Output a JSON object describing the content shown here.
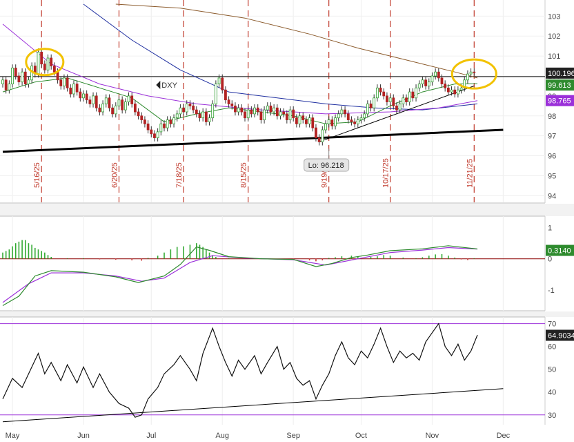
{
  "chart_data": [
    {
      "type": "candlestick",
      "symbol": "DXY",
      "x_labels": [
        "May",
        "Jun",
        "Jul",
        "Aug",
        "Sep",
        "Oct",
        "Nov",
        "Dec"
      ],
      "ylim": [
        93.7,
        103.6
      ],
      "y_ticks": [
        94,
        95,
        96,
        97,
        98,
        99,
        100,
        101,
        102,
        103
      ],
      "event_dates": [
        "5/16/25",
        "6/20/25",
        "7/18/25",
        "8/15/25",
        "9/19/25",
        "10/17/25",
        "11/21/25"
      ],
      "low_label": "Lo: 96.218",
      "last_price": "100.196",
      "ma_short_value": "99.613",
      "ma_long_value": "98.765",
      "horizontal_level": 99.97,
      "closes": [
        99.8,
        99.3,
        99.6,
        100.4,
        100.0,
        99.7,
        100.2,
        99.6,
        99.8,
        100.5,
        100.1,
        101.2,
        100.6,
        100.3,
        100.9,
        100.5,
        100.2,
        99.8,
        99.5,
        99.9,
        99.4,
        99.1,
        99.6,
        99.2,
        98.9,
        99.1,
        98.8,
        98.6,
        99.0,
        98.4,
        98.2,
        98.6,
        98.9,
        98.4,
        98.1,
        98.5,
        98.8,
        98.3,
        98.7,
        99.0,
        98.6,
        98.2,
        98.0,
        97.8,
        97.6,
        97.3,
        97.1,
        96.9,
        97.2,
        97.6,
        97.4,
        97.8,
        97.6,
        97.9,
        98.1,
        98.4,
        98.2,
        98.6,
        98.5,
        98.3,
        98.1,
        97.9,
        98.2,
        97.7,
        97.9,
        98.6,
        99.6,
        99.9,
        99.3,
        98.8,
        98.6,
        98.5,
        98.2,
        98.4,
        98.2,
        97.9,
        98.3,
        98.1,
        98.4,
        98.2,
        97.8,
        98.3,
        98.5,
        98.2,
        98.4,
        98.0,
        98.2,
        98.1,
        97.8,
        98.3,
        97.9,
        97.6,
        98.0,
        97.8,
        97.6,
        97.9,
        97.4,
        96.9,
        96.7,
        97.3,
        97.6,
        97.8,
        97.5,
        97.9,
        98.1,
        98.3,
        98.1,
        97.8,
        97.7,
        97.6,
        97.8,
        97.9,
        98.1,
        98.6,
        98.4,
        98.9,
        99.4,
        99.2,
        99.0,
        98.7,
        98.9,
        98.5,
        98.3,
        98.6,
        98.9,
        98.7,
        99.2,
        98.9,
        99.4,
        99.6,
        99.8,
        99.5,
        99.7,
        100.0,
        100.2,
        99.9,
        99.6,
        99.4,
        99.2,
        99.3,
        99.1,
        99.3,
        99.4,
        99.8,
        100.1,
        100.2,
        100.196
      ],
      "ma_short_points": [
        [
          0,
          99.2
        ],
        [
          10,
          99.7
        ],
        [
          20,
          99.9
        ],
        [
          30,
          99.4
        ],
        [
          40,
          98.9
        ],
        [
          50,
          97.7
        ],
        [
          60,
          98.1
        ],
        [
          70,
          98.4
        ],
        [
          80,
          98.2
        ],
        [
          90,
          98.0
        ],
        [
          100,
          97.6
        ],
        [
          110,
          97.7
        ],
        [
          120,
          98.5
        ],
        [
          130,
          99.2
        ],
        [
          140,
          99.6
        ],
        [
          147,
          99.613
        ]
      ],
      "ma_long_points": [
        [
          0,
          102.6
        ],
        [
          15,
          100.6
        ],
        [
          30,
          99.6
        ],
        [
          45,
          99.0
        ],
        [
          60,
          98.6
        ],
        [
          80,
          98.3
        ],
        [
          100,
          98.1
        ],
        [
          120,
          98.2
        ],
        [
          135,
          98.4
        ],
        [
          147,
          98.765
        ]
      ],
      "ma_blue_points": [
        [
          25,
          103.6
        ],
        [
          40,
          101.8
        ],
        [
          55,
          100.3
        ],
        [
          70,
          99.2
        ],
        [
          85,
          98.9
        ],
        [
          100,
          98.6
        ],
        [
          115,
          98.4
        ],
        [
          130,
          98.3
        ],
        [
          147,
          98.6
        ]
      ],
      "ma_brown_points": [
        [
          35,
          103.6
        ],
        [
          55,
          103.4
        ],
        [
          75,
          102.9
        ],
        [
          95,
          102.1
        ],
        [
          110,
          101.4
        ],
        [
          125,
          100.8
        ],
        [
          140,
          100.2
        ],
        [
          147,
          99.9
        ]
      ],
      "trendline_support": [
        [
          0,
          96.2
        ],
        [
          155,
          97.3
        ]
      ],
      "trendline_short": [
        [
          98,
          96.7
        ],
        [
          146,
          99.5
        ]
      ]
    },
    {
      "type": "line",
      "ylim": [
        -1.6,
        1.3
      ],
      "y_ticks": [
        1,
        0,
        -1
      ],
      "last_value": "0.3140",
      "macd_points": [
        [
          0,
          -1.5
        ],
        [
          5,
          -1.2
        ],
        [
          10,
          -0.55
        ],
        [
          15,
          -0.38
        ],
        [
          25,
          -0.43
        ],
        [
          35,
          -0.58
        ],
        [
          42,
          -0.76
        ],
        [
          50,
          -0.55
        ],
        [
          55,
          -0.18
        ],
        [
          60,
          0.38
        ],
        [
          64,
          0.27
        ],
        [
          70,
          0.07
        ],
        [
          80,
          0.0
        ],
        [
          90,
          -0.02
        ],
        [
          97,
          -0.25
        ],
        [
          102,
          -0.15
        ],
        [
          108,
          0.04
        ],
        [
          113,
          0.12
        ],
        [
          120,
          0.26
        ],
        [
          130,
          0.32
        ],
        [
          138,
          0.42
        ],
        [
          147,
          0.314
        ]
      ],
      "signal_points": [
        [
          0,
          -1.4
        ],
        [
          8,
          -0.8
        ],
        [
          15,
          -0.45
        ],
        [
          25,
          -0.45
        ],
        [
          35,
          -0.55
        ],
        [
          43,
          -0.72
        ],
        [
          50,
          -0.62
        ],
        [
          58,
          -0.12
        ],
        [
          65,
          0.1
        ],
        [
          75,
          0.02
        ],
        [
          90,
          -0.03
        ],
        [
          100,
          -0.2
        ],
        [
          110,
          0.0
        ],
        [
          120,
          0.2
        ],
        [
          130,
          0.28
        ],
        [
          138,
          0.36
        ],
        [
          147,
          0.31
        ]
      ],
      "histogram": [
        [
          0,
          0.2
        ],
        [
          1,
          0.25
        ],
        [
          2,
          0.3
        ],
        [
          3,
          0.4
        ],
        [
          4,
          0.5
        ],
        [
          5,
          0.55
        ],
        [
          6,
          0.6
        ],
        [
          7,
          0.6
        ],
        [
          8,
          0.5
        ],
        [
          9,
          0.45
        ],
        [
          10,
          0.35
        ],
        [
          11,
          0.3
        ],
        [
          12,
          0.25
        ],
        [
          13,
          0.2
        ],
        [
          14,
          0.12
        ],
        [
          15,
          0.06
        ],
        [
          20,
          0.02
        ],
        [
          25,
          0.02
        ],
        [
          30,
          -0.02
        ],
        [
          35,
          -0.03
        ],
        [
          40,
          -0.05
        ],
        [
          43,
          -0.06
        ],
        [
          45,
          0.03
        ],
        [
          48,
          0.1
        ],
        [
          50,
          0.2
        ],
        [
          52,
          0.3
        ],
        [
          54,
          0.38
        ],
        [
          56,
          0.4
        ],
        [
          58,
          0.45
        ],
        [
          60,
          0.5
        ],
        [
          61,
          0.45
        ],
        [
          62,
          0.38
        ],
        [
          63,
          0.3
        ],
        [
          64,
          0.2
        ],
        [
          65,
          0.12
        ],
        [
          66,
          0.06
        ],
        [
          70,
          0.02
        ],
        [
          80,
          0.02
        ],
        [
          90,
          -0.02
        ],
        [
          95,
          -0.05
        ],
        [
          97,
          -0.08
        ],
        [
          99,
          -0.05
        ],
        [
          101,
          0.03
        ],
        [
          103,
          0.05
        ],
        [
          105,
          0.08
        ],
        [
          108,
          0.1
        ],
        [
          110,
          0.08
        ],
        [
          114,
          0.06
        ],
        [
          116,
          0.08
        ],
        [
          118,
          0.12
        ],
        [
          120,
          0.1
        ],
        [
          124,
          0.04
        ],
        [
          128,
          0.02
        ],
        [
          130,
          0.05
        ],
        [
          132,
          0.1
        ],
        [
          134,
          0.14
        ],
        [
          136,
          0.15
        ],
        [
          138,
          0.1
        ],
        [
          140,
          0.04
        ],
        [
          142,
          -0.02
        ],
        [
          144,
          -0.04
        ],
        [
          146,
          0.02
        ]
      ]
    },
    {
      "type": "line",
      "ylim": [
        26,
        72
      ],
      "y_ticks": [
        70,
        60,
        50,
        40,
        30
      ],
      "upper_band": 70,
      "lower_band": 30,
      "last_value": "64.9034",
      "rsi_points": [
        [
          0,
          37
        ],
        [
          3,
          46
        ],
        [
          6,
          42
        ],
        [
          9,
          51
        ],
        [
          11,
          57
        ],
        [
          13,
          48
        ],
        [
          15,
          53
        ],
        [
          18,
          45
        ],
        [
          20,
          52
        ],
        [
          23,
          44
        ],
        [
          25,
          51
        ],
        [
          28,
          42
        ],
        [
          30,
          48
        ],
        [
          33,
          40
        ],
        [
          36,
          35
        ],
        [
          39,
          33
        ],
        [
          41,
          29
        ],
        [
          43,
          30
        ],
        [
          45,
          37
        ],
        [
          48,
          42
        ],
        [
          50,
          48
        ],
        [
          53,
          52
        ],
        [
          55,
          56
        ],
        [
          58,
          50
        ],
        [
          60,
          45
        ],
        [
          62,
          57
        ],
        [
          65,
          68
        ],
        [
          67,
          60
        ],
        [
          69,
          53
        ],
        [
          71,
          47
        ],
        [
          73,
          54
        ],
        [
          75,
          50
        ],
        [
          78,
          56
        ],
        [
          80,
          48
        ],
        [
          82,
          53
        ],
        [
          85,
          60
        ],
        [
          87,
          50
        ],
        [
          89,
          53
        ],
        [
          91,
          46
        ],
        [
          93,
          43
        ],
        [
          95,
          45
        ],
        [
          97,
          37
        ],
        [
          99,
          43
        ],
        [
          101,
          48
        ],
        [
          103,
          56
        ],
        [
          105,
          62
        ],
        [
          107,
          55
        ],
        [
          109,
          52
        ],
        [
          111,
          58
        ],
        [
          113,
          55
        ],
        [
          115,
          61
        ],
        [
          117,
          68
        ],
        [
          119,
          60
        ],
        [
          121,
          53
        ],
        [
          123,
          58
        ],
        [
          125,
          55
        ],
        [
          127,
          57
        ],
        [
          129,
          54
        ],
        [
          131,
          62
        ],
        [
          133,
          66
        ],
        [
          135,
          70
        ],
        [
          137,
          60
        ],
        [
          139,
          56
        ],
        [
          141,
          61
        ],
        [
          143,
          54
        ],
        [
          145,
          58
        ],
        [
          147,
          65
        ]
      ],
      "trendline": [
        [
          0,
          27
        ],
        [
          155,
          41.5
        ]
      ]
    }
  ]
}
